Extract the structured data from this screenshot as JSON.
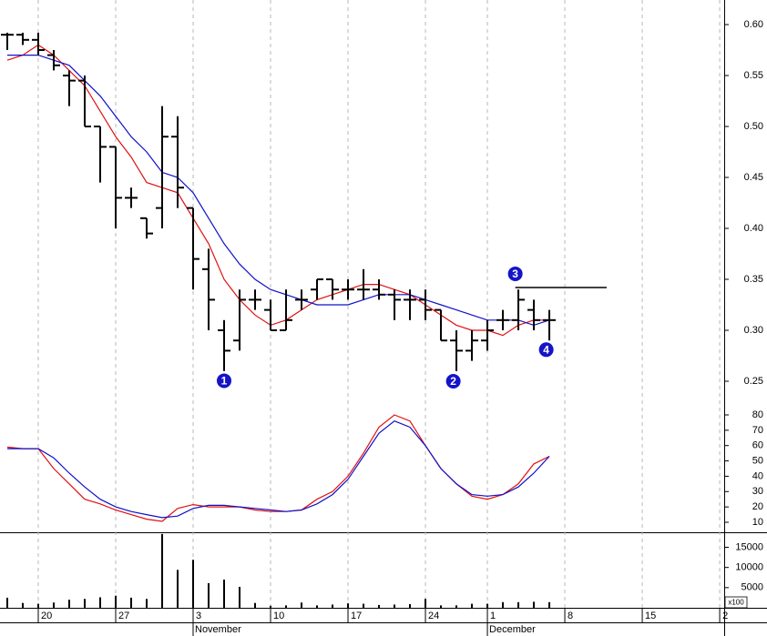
{
  "chart_data": [
    {
      "type": "ohlc",
      "x": [
        -2,
        -1,
        0,
        1,
        2,
        3,
        4,
        5,
        6,
        7,
        8,
        9,
        10,
        11,
        12,
        13,
        14,
        15,
        16,
        17,
        18,
        19,
        20,
        21,
        22,
        23,
        24,
        25,
        26,
        27,
        28,
        29,
        30,
        31,
        32,
        33
      ],
      "open": [
        0.59,
        0.59,
        0.585,
        0.57,
        0.55,
        0.545,
        0.5,
        0.48,
        0.43,
        0.41,
        0.42,
        0.49,
        0.42,
        0.36,
        0.3,
        0.29,
        0.33,
        0.32,
        0.3,
        0.33,
        0.34,
        0.35,
        0.34,
        0.34,
        0.34,
        0.335,
        0.33,
        0.33,
        0.32,
        0.29,
        0.28,
        0.29,
        0.31,
        0.31,
        0.32,
        0.31
      ],
      "high": [
        0.592,
        0.592,
        0.592,
        0.575,
        0.555,
        0.55,
        0.5,
        0.48,
        0.44,
        0.41,
        0.52,
        0.51,
        0.42,
        0.38,
        0.31,
        0.34,
        0.34,
        0.33,
        0.34,
        0.34,
        0.35,
        0.35,
        0.35,
        0.36,
        0.35,
        0.34,
        0.34,
        0.34,
        0.32,
        0.3,
        0.3,
        0.31,
        0.32,
        0.34,
        0.33,
        0.32
      ],
      "low": [
        0.575,
        0.58,
        0.57,
        0.555,
        0.52,
        0.5,
        0.445,
        0.4,
        0.42,
        0.39,
        0.4,
        0.42,
        0.34,
        0.3,
        0.26,
        0.28,
        0.32,
        0.3,
        0.3,
        0.32,
        0.33,
        0.33,
        0.33,
        0.33,
        0.33,
        0.31,
        0.31,
        0.31,
        0.29,
        0.26,
        0.27,
        0.28,
        0.3,
        0.3,
        0.3,
        0.29
      ],
      "close": [
        0.59,
        0.585,
        0.575,
        0.56,
        0.545,
        0.5,
        0.48,
        0.43,
        0.43,
        0.395,
        0.49,
        0.44,
        0.37,
        0.33,
        0.28,
        0.33,
        0.33,
        0.3,
        0.31,
        0.33,
        0.35,
        0.34,
        0.34,
        0.34,
        0.335,
        0.33,
        0.33,
        0.32,
        0.29,
        0.28,
        0.29,
        0.3,
        0.31,
        0.33,
        0.31,
        0.31
      ],
      "color": "#000000",
      "overlays": [
        {
          "color": "#e01010",
          "values": [
            0.565,
            0.57,
            0.58,
            0.57,
            0.555,
            0.54,
            0.515,
            0.49,
            0.47,
            0.445,
            0.44,
            0.435,
            0.41,
            0.385,
            0.35,
            0.33,
            0.315,
            0.305,
            0.31,
            0.32,
            0.33,
            0.335,
            0.34,
            0.345,
            0.345,
            0.34,
            0.335,
            0.325,
            0.315,
            0.305,
            0.3,
            0.3,
            0.295,
            0.305,
            0.31,
            0.31
          ]
        },
        {
          "color": "#1010c8",
          "values": [
            0.57,
            0.57,
            0.57,
            0.565,
            0.56,
            0.545,
            0.53,
            0.51,
            0.49,
            0.475,
            0.455,
            0.45,
            0.435,
            0.41,
            0.385,
            0.365,
            0.35,
            0.34,
            0.335,
            0.33,
            0.325,
            0.325,
            0.325,
            0.33,
            0.335,
            0.335,
            0.335,
            0.33,
            0.325,
            0.32,
            0.315,
            0.31,
            0.31,
            0.31,
            0.305,
            0.31
          ]
        }
      ],
      "level": {
        "value": 0.342,
        "x": [
          30.8,
          36.7
        ],
        "color": "#cc0000"
      },
      "annotations": [
        {
          "text": "1",
          "x": 12,
          "y": 0.2505
        },
        {
          "text": "2",
          "x": 26.8,
          "y": 0.25
        },
        {
          "text": "3",
          "x": 30.8,
          "y": 0.3554
        },
        {
          "text": "4",
          "x": 32.8,
          "y": 0.281
        }
      ],
      "xlim": [
        -2.47,
        44.29
      ],
      "ylim": [
        0.2268,
        0.6241
      ],
      "yticks": [
        {
          "value": 0.6,
          "label": "0.60"
        },
        0.55,
        {
          "value": 0.5,
          "label": "0.50"
        },
        0.45,
        {
          "value": 0.4,
          "label": "0.40"
        },
        0.35,
        {
          "value": 0.3,
          "label": "0.30"
        },
        0.25
      ]
    },
    {
      "type": "line",
      "x": [
        -2,
        -1,
        0,
        1,
        2,
        3,
        4,
        5,
        6,
        7,
        8,
        9,
        10,
        11,
        12,
        13,
        14,
        15,
        16,
        17,
        18,
        19,
        20,
        21,
        22,
        23,
        24,
        25,
        26,
        27,
        28,
        29,
        30,
        31,
        32,
        33
      ],
      "series": [
        {
          "color": "#e01010",
          "values": [
            59,
            58,
            58,
            45,
            35,
            25,
            22,
            18,
            15,
            12,
            10.6,
            19,
            21.5,
            20,
            20,
            20,
            18,
            17,
            17,
            18,
            25,
            30,
            40,
            55,
            72,
            80,
            76,
            60,
            45,
            35,
            27,
            25,
            28,
            35,
            48,
            53
          ]
        },
        {
          "color": "#1010c8",
          "values": [
            58,
            58,
            58,
            52,
            42,
            33,
            25,
            20,
            17,
            15,
            13,
            14,
            19,
            21,
            21,
            20,
            19,
            18,
            17,
            18,
            22,
            28,
            38,
            53,
            68,
            76,
            72,
            60,
            45,
            35,
            28,
            27,
            28,
            33,
            42,
            53
          ]
        }
      ],
      "xlim": [
        -2.47,
        44.29
      ],
      "ylim": [
        3.47,
        86.52
      ],
      "yticks": [
        80,
        70,
        60,
        50,
        40,
        30,
        20,
        10
      ]
    },
    {
      "type": "bar",
      "x": [
        -2,
        -1,
        0,
        1,
        2,
        3,
        4,
        5,
        6,
        7,
        8,
        9,
        10,
        11,
        12,
        13,
        14,
        15,
        16,
        17,
        18,
        19,
        20,
        21,
        22,
        23,
        24,
        25,
        26,
        27,
        28,
        29,
        30,
        31,
        32,
        33
      ],
      "values": [
        2500,
        1200,
        1000,
        1300,
        2000,
        2200,
        2600,
        3000,
        2500,
        2200,
        18300,
        9400,
        11900,
        6100,
        7000,
        5200,
        1200,
        500,
        600,
        1300,
        600,
        800,
        1100,
        1000,
        700,
        800,
        900,
        2200,
        600,
        600,
        1000,
        1000,
        1400,
        1400,
        1500,
        1400
      ],
      "color": "#1010c8",
      "unit_label": "x100",
      "xlim": [
        -2.47,
        44.29
      ],
      "ylim": [
        0,
        18500
      ],
      "yticks": [
        15000,
        10000,
        5000
      ],
      "xticks": [
        {
          "value": 0,
          "label": "20"
        },
        {
          "value": 5,
          "label": "27"
        },
        {
          "value": 10,
          "label": "3"
        },
        {
          "value": 15,
          "label": "10"
        },
        {
          "value": 20,
          "label": "17"
        },
        {
          "value": 25,
          "label": "24"
        },
        {
          "value": 29,
          "label": "1"
        },
        {
          "value": 34,
          "label": "8"
        },
        {
          "value": 39,
          "label": "15"
        },
        {
          "value": 44,
          "label": "2"
        }
      ],
      "months": [
        {
          "value": 10,
          "label": "November"
        },
        {
          "value": 29,
          "label": "December"
        }
      ]
    }
  ]
}
